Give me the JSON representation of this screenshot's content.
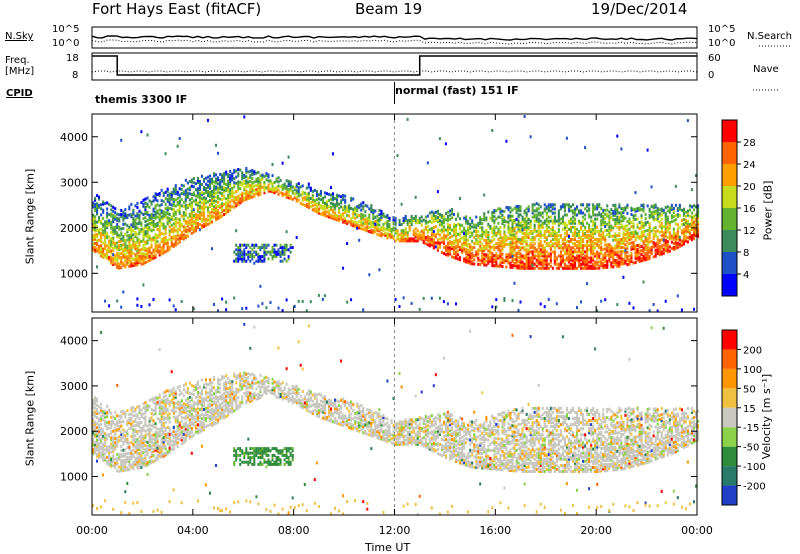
{
  "header": {
    "radar": "Fort Hays East (fitACF)",
    "beam": "Beam 19",
    "date": "19/Dec/2014"
  },
  "noise_panel": {
    "left_label": "N.Sky",
    "left_ticks": [
      "10^5",
      "10^0"
    ],
    "right_label": "N.Search",
    "right_ticks": [
      "10^5",
      "10^0"
    ]
  },
  "freq_panel": {
    "left_label_1": "Freq.",
    "left_label_2": "[MHz]",
    "left_ticks": [
      "18",
      "8"
    ],
    "right_label": "Nave",
    "right_ticks": [
      "60",
      "0"
    ]
  },
  "cpid_panel": {
    "label": "CPID",
    "programs": [
      "themis 3300 IF",
      "normal (fast) 151 IF"
    ]
  },
  "chart_data": [
    {
      "type": "heatmap",
      "title": "",
      "quantity": "Power",
      "ylabel": "Slant Range [km]",
      "xlabel": "",
      "ylim": [
        150,
        4500
      ],
      "yticks": [
        "1000",
        "2000",
        "3000",
        "4000"
      ],
      "xticks": [
        "00:00",
        "04:00",
        "08:00",
        "12:00",
        "16:00",
        "20:00",
        "00:00"
      ],
      "colorbar": {
        "label": "Power [dB]",
        "ticks": [
          "4",
          "8",
          "12",
          "16",
          "20",
          "24",
          "28"
        ],
        "colors": [
          "#0000ff",
          "#2050c8",
          "#3c8c5a",
          "#64b432",
          "#c8dc1e",
          "#ffa000",
          "#ff6400",
          "#ff0000"
        ]
      },
      "scatter_bands": {
        "hours": [
          0,
          1,
          2,
          3,
          4,
          5,
          6,
          7,
          8,
          9,
          10,
          11,
          12,
          13,
          14,
          15,
          16,
          17,
          18,
          19,
          20,
          21,
          22,
          23,
          24
        ],
        "range_lower_km": [
          1500,
          1100,
          1200,
          1500,
          1900,
          2200,
          2600,
          2800,
          2600,
          2300,
          2100,
          1900,
          1700,
          1700,
          1400,
          1200,
          1150,
          1100,
          1100,
          1100,
          1100,
          1150,
          1300,
          1500,
          1800
        ],
        "range_upper_km": [
          2800,
          2400,
          2600,
          2900,
          3100,
          3200,
          3300,
          3200,
          3000,
          2800,
          2700,
          2500,
          2200,
          2300,
          2400,
          2200,
          2400,
          2500,
          2500,
          2500,
          2500,
          2500,
          2500,
          2500,
          2500
        ]
      }
    },
    {
      "type": "heatmap",
      "title": "",
      "quantity": "Velocity",
      "ylabel": "Slant Range [km]",
      "xlabel": "Time UT",
      "ylim": [
        150,
        4500
      ],
      "yticks": [
        "1000",
        "2000",
        "3000",
        "4000"
      ],
      "xticks": [
        "00:00",
        "04:00",
        "08:00",
        "12:00",
        "16:00",
        "20:00",
        "00:00"
      ],
      "colorbar": {
        "label": "Velocity [m s⁻¹]",
        "ticks": [
          "200",
          "100",
          "50",
          "15",
          "-15",
          "-50",
          "-100",
          "-200"
        ],
        "colors": [
          "#2040c8",
          "#2a7a6a",
          "#2e8c3c",
          "#8cd24a",
          "#c8c8c0",
          "#f0c040",
          "#ff9600",
          "#ff6400",
          "#ff0000"
        ]
      },
      "dominant_value_band": "-15 to 15"
    }
  ]
}
